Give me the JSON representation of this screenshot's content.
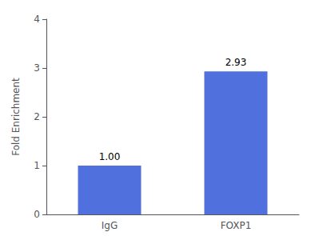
{
  "chart_data": {
    "type": "bar",
    "categories": [
      "IgG",
      "FOXP1"
    ],
    "values": [
      1.0,
      2.93
    ],
    "value_labels": [
      "1.00",
      "2.93"
    ],
    "data_labels": true,
    "ylabel": "Fold Enrichment",
    "ylim": [
      0,
      4
    ],
    "yticks": [
      0,
      1,
      2,
      3,
      4
    ],
    "grid": false
  }
}
